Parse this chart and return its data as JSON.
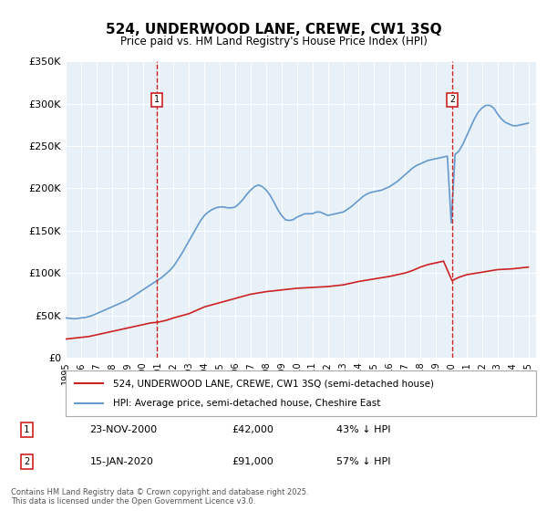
{
  "title": "524, UNDERWOOD LANE, CREWE, CW1 3SQ",
  "subtitle": "Price paid vs. HM Land Registry's House Price Index (HPI)",
  "ylabel_values": [
    "£0",
    "£50K",
    "£100K",
    "£150K",
    "£200K",
    "£250K",
    "£300K",
    "£350K"
  ],
  "ylim": [
    0,
    350000
  ],
  "xlim_start": 1995.0,
  "xlim_end": 2025.5,
  "bg_color": "#e8f0f8",
  "line_color_hpi": "#6699cc",
  "line_color_price": "#cc2222",
  "vline_color": "#cc2222",
  "purchases": [
    {
      "date_num": 2000.9,
      "price": 42000,
      "label": "1",
      "date_str": "23-NOV-2000",
      "pct": "43% ↓ HPI"
    },
    {
      "date_num": 2020.05,
      "price": 91000,
      "label": "2",
      "date_str": "15-JAN-2020",
      "pct": "57% ↓ HPI"
    }
  ],
  "legend_line1": "524, UNDERWOOD LANE, CREWE, CW1 3SQ (semi-detached house)",
  "legend_line2": "HPI: Average price, semi-detached house, Cheshire East",
  "footer": "Contains HM Land Registry data © Crown copyright and database right 2025.\nThis data is licensed under the Open Government Licence v3.0.",
  "hpi_data": {
    "years": [
      1995.0,
      1995.25,
      1995.5,
      1995.75,
      1996.0,
      1996.25,
      1996.5,
      1996.75,
      1997.0,
      1997.25,
      1997.5,
      1997.75,
      1998.0,
      1998.25,
      1998.5,
      1998.75,
      1999.0,
      1999.25,
      1999.5,
      1999.75,
      2000.0,
      2000.25,
      2000.5,
      2000.75,
      2001.0,
      2001.25,
      2001.5,
      2001.75,
      2002.0,
      2002.25,
      2002.5,
      2002.75,
      2003.0,
      2003.25,
      2003.5,
      2003.75,
      2004.0,
      2004.25,
      2004.5,
      2004.75,
      2005.0,
      2005.25,
      2005.5,
      2005.75,
      2006.0,
      2006.25,
      2006.5,
      2006.75,
      2007.0,
      2007.25,
      2007.5,
      2007.75,
      2008.0,
      2008.25,
      2008.5,
      2008.75,
      2009.0,
      2009.25,
      2009.5,
      2009.75,
      2010.0,
      2010.25,
      2010.5,
      2010.75,
      2011.0,
      2011.25,
      2011.5,
      2011.75,
      2012.0,
      2012.25,
      2012.5,
      2012.75,
      2013.0,
      2013.25,
      2013.5,
      2013.75,
      2014.0,
      2014.25,
      2014.5,
      2014.75,
      2015.0,
      2015.25,
      2015.5,
      2015.75,
      2016.0,
      2016.25,
      2016.5,
      2016.75,
      2017.0,
      2017.25,
      2017.5,
      2017.75,
      2018.0,
      2018.25,
      2018.5,
      2018.75,
      2019.0,
      2019.25,
      2019.5,
      2019.75,
      2020.0,
      2020.25,
      2020.5,
      2020.75,
      2021.0,
      2021.25,
      2021.5,
      2021.75,
      2022.0,
      2022.25,
      2022.5,
      2022.75,
      2023.0,
      2023.25,
      2023.5,
      2023.75,
      2024.0,
      2024.25,
      2024.5,
      2024.75,
      2025.0
    ],
    "values": [
      47000,
      46500,
      46000,
      46200,
      47000,
      47500,
      48500,
      50000,
      52000,
      54000,
      56000,
      58000,
      60000,
      62000,
      64000,
      66000,
      68000,
      71000,
      74000,
      77000,
      80000,
      83000,
      86000,
      89000,
      92000,
      95000,
      99000,
      103000,
      108000,
      115000,
      122000,
      130000,
      138000,
      146000,
      154000,
      162000,
      168000,
      172000,
      175000,
      177000,
      178000,
      178000,
      177000,
      177000,
      178000,
      182000,
      187000,
      193000,
      198000,
      202000,
      204000,
      202000,
      198000,
      192000,
      184000,
      175000,
      168000,
      163000,
      162000,
      163000,
      166000,
      168000,
      170000,
      170000,
      170000,
      172000,
      172000,
      170000,
      168000,
      169000,
      170000,
      171000,
      172000,
      175000,
      178000,
      182000,
      186000,
      190000,
      193000,
      195000,
      196000,
      197000,
      198000,
      200000,
      202000,
      205000,
      208000,
      212000,
      216000,
      220000,
      224000,
      227000,
      229000,
      231000,
      233000,
      234000,
      235000,
      236000,
      237000,
      238000,
      159000,
      240000,
      244000,
      252000,
      262000,
      272000,
      282000,
      290000,
      295000,
      298000,
      298000,
      295000,
      288000,
      282000,
      278000,
      276000,
      274000,
      274000,
      275000,
      276000,
      277000
    ]
  },
  "price_data": {
    "years": [
      1995.0,
      1995.5,
      1996.0,
      1996.5,
      1997.0,
      1997.5,
      1998.0,
      1998.5,
      1999.0,
      1999.5,
      2000.0,
      2000.5,
      2001.0,
      2001.5,
      2002.0,
      2003.0,
      2004.0,
      2005.0,
      2006.0,
      2007.0,
      2008.0,
      2009.0,
      2010.0,
      2011.0,
      2012.0,
      2013.0,
      2014.0,
      2015.0,
      2016.0,
      2017.0,
      2017.5,
      2018.0,
      2018.5,
      2019.0,
      2019.5,
      2020.05,
      2020.5,
      2021.0,
      2022.0,
      2023.0,
      2024.0,
      2025.0
    ],
    "values": [
      22000,
      23000,
      24000,
      25000,
      27000,
      29000,
      31000,
      33000,
      35000,
      37000,
      39000,
      41000,
      42000,
      44000,
      47000,
      52000,
      60000,
      65000,
      70000,
      75000,
      78000,
      80000,
      82000,
      83000,
      84000,
      86000,
      90000,
      93000,
      96000,
      100000,
      103000,
      107000,
      110000,
      112000,
      114000,
      91000,
      95000,
      98000,
      101000,
      104000,
      105000,
      107000
    ]
  }
}
